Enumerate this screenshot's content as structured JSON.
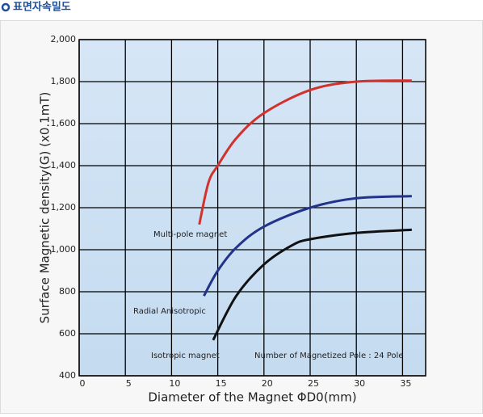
{
  "header": {
    "title": "표면자속밀도"
  },
  "chart_data": {
    "type": "line",
    "x_label": "Diameter of the Magnet ΦD0(mm)",
    "y_label": "Surface Magnetic density(G) (x0.1mT)",
    "annotation": "Number of Magnetized Pole : 24 Pole",
    "xlim": [
      0,
      37.5
    ],
    "xticks": [
      0,
      5,
      10,
      15,
      20,
      25,
      30,
      35
    ],
    "ylim": [
      400,
      2000
    ],
    "yticks": [
      400,
      600,
      800,
      {
        "value": 1000,
        "label": "1,000"
      },
      {
        "value": 1200,
        "label": "1,200"
      },
      {
        "value": 1400,
        "label": "1,400"
      },
      {
        "value": 1600,
        "label": "1,600"
      },
      {
        "value": 1800,
        "label": "1,800"
      },
      {
        "value": 2000,
        "label": "2,000"
      }
    ],
    "grid": true,
    "series": [
      {
        "name": "Multi-pole magnet",
        "color": "#d2322d",
        "x": [
          13,
          14,
          15,
          17,
          20,
          25,
          30,
          36
        ],
        "values": [
          1120,
          1320,
          1400,
          1530,
          1650,
          1760,
          1800,
          1805
        ]
      },
      {
        "name": "Radial Anisotropic",
        "color": "#23338a",
        "x": [
          13.5,
          15,
          17,
          20,
          25,
          30,
          36
        ],
        "values": [
          780,
          900,
          1010,
          1110,
          1200,
          1245,
          1255
        ]
      },
      {
        "name": "Isotropic magnet",
        "color": "#111111",
        "x": [
          14.5,
          17,
          20,
          23,
          25,
          30,
          36
        ],
        "values": [
          570,
          780,
          930,
          1020,
          1050,
          1080,
          1095
        ]
      }
    ]
  }
}
